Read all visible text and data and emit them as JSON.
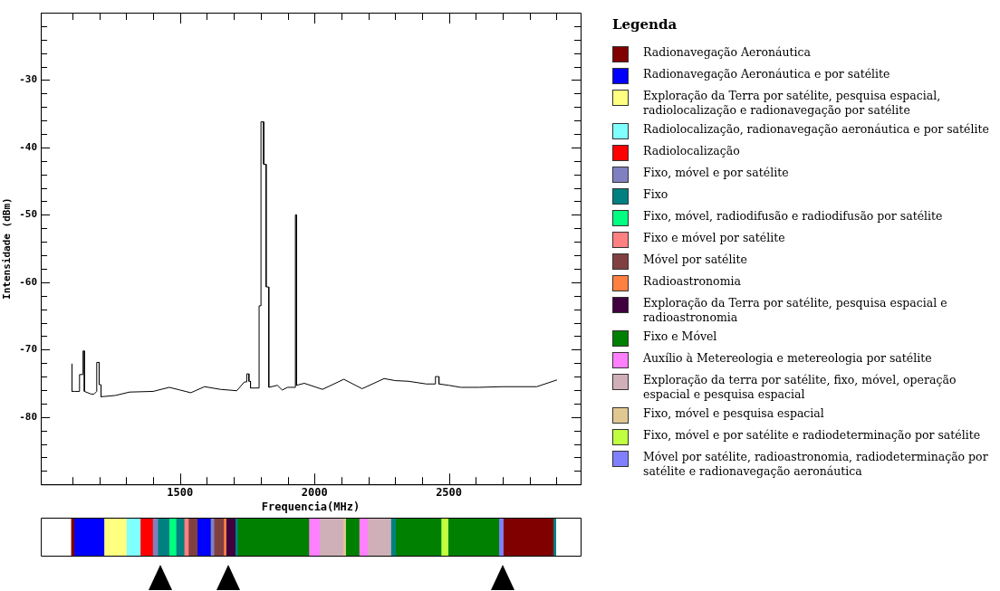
{
  "chart_data": [
    {
      "type": "line",
      "xlabel": "Frequencia(MHz)",
      "ylabel": "Intensidade (dBm)",
      "marker": "none",
      "line_style": "solid",
      "xlim": [
        982,
        2990
      ],
      "ylim": [
        -90,
        -20
      ],
      "xticks": [
        {
          "value": 1100,
          "label": null
        },
        {
          "value": 1200,
          "label": null
        },
        {
          "value": 1300,
          "label": null
        },
        {
          "value": 1400,
          "label": null
        },
        1500,
        {
          "value": 1600,
          "label": null
        },
        {
          "value": 1700,
          "label": null
        },
        {
          "value": 1800,
          "label": null
        },
        {
          "value": 1900,
          "label": null
        },
        2000,
        {
          "value": 2100,
          "label": null
        },
        {
          "value": 2200,
          "label": null
        },
        {
          "value": 2300,
          "label": null
        },
        {
          "value": 2400,
          "label": null
        },
        2500,
        {
          "value": 2600,
          "label": null
        },
        {
          "value": 2700,
          "label": null
        },
        {
          "value": 2800,
          "label": null
        },
        {
          "value": 2900,
          "label": null
        }
      ],
      "yticks": [
        {
          "value": -88,
          "label": null
        },
        {
          "value": -86,
          "label": null
        },
        {
          "value": -84,
          "label": null
        },
        {
          "value": -82,
          "label": null
        },
        -80,
        {
          "value": -78,
          "label": null
        },
        {
          "value": -76,
          "label": null
        },
        {
          "value": -74,
          "label": null
        },
        {
          "value": -72,
          "label": null
        },
        -70,
        {
          "value": -68,
          "label": null
        },
        {
          "value": -66,
          "label": null
        },
        {
          "value": -64,
          "label": null
        },
        {
          "value": -62,
          "label": null
        },
        -60,
        {
          "value": -58,
          "label": null
        },
        {
          "value": -56,
          "label": null
        },
        {
          "value": -54,
          "label": null
        },
        {
          "value": -52,
          "label": null
        },
        -50,
        {
          "value": -48,
          "label": null
        },
        {
          "value": -46,
          "label": null
        },
        {
          "value": -44,
          "label": null
        },
        {
          "value": -42,
          "label": null
        },
        -40,
        {
          "value": -38,
          "label": null
        },
        {
          "value": -36,
          "label": null
        },
        {
          "value": -34,
          "label": null
        },
        {
          "value": -32,
          "label": null
        },
        -30,
        {
          "value": -28,
          "label": null
        },
        {
          "value": -26,
          "label": null
        },
        {
          "value": -24,
          "label": null
        },
        {
          "value": -22,
          "label": null
        }
      ],
      "x": [
        1098,
        1098,
        1109,
        1126,
        1126,
        1139,
        1139,
        1144,
        1144,
        1169,
        1180,
        1190,
        1190,
        1199,
        1199,
        1206,
        1206,
        1260,
        1312,
        1400,
        1460,
        1500,
        1540,
        1591,
        1650,
        1711,
        1739,
        1748,
        1748,
        1756,
        1756,
        1762,
        1762,
        1794,
        1794,
        1801,
        1801,
        1811,
        1811,
        1820,
        1820,
        1830,
        1830,
        1862,
        1880,
        1900,
        1929,
        1929,
        1933,
        1933,
        1962,
        2030,
        2109,
        2177,
        2259,
        2300,
        2350,
        2416,
        2450,
        2450,
        2463,
        2463,
        2500,
        2543,
        2611,
        2700,
        2827,
        2902
      ],
      "series": [
        {
          "color": "#000000",
          "values": [
            -72.1,
            -76.2,
            -76.2,
            -76.2,
            -73.7,
            -73.7,
            -70.2,
            -70.2,
            -76.2,
            -76.6,
            -76.6,
            -76.2,
            -71.9,
            -71.9,
            -75.2,
            -75.2,
            -77.0,
            -76.8,
            -76.3,
            -76.2,
            -75.6,
            -76.0,
            -76.4,
            -75.5,
            -75.9,
            -76.1,
            -74.8,
            -74.8,
            -73.6,
            -73.6,
            -74.7,
            -74.7,
            -75.7,
            -75.7,
            -63.5,
            -63.5,
            -36.2,
            -36.2,
            -42.5,
            -42.5,
            -60.7,
            -60.7,
            -75.6,
            -75.3,
            -76.0,
            -75.6,
            -75.6,
            -50.0,
            -50.0,
            -75.3,
            -75.0,
            -75.9,
            -74.4,
            -75.8,
            -74.3,
            -74.6,
            -74.7,
            -75.1,
            -75.1,
            -74.0,
            -74.0,
            -75.1,
            -75.3,
            -75.6,
            -75.6,
            -75.5,
            -75.5,
            -74.5
          ]
        }
      ]
    },
    {
      "type": "bar",
      "orientation": "horizontal",
      "categories": [
        null
      ],
      "xlim": [
        982,
        2990
      ],
      "tick_labels": false,
      "legend": "right",
      "legend_title": "Legenda",
      "series": [
        {
          "name": "Radionavegação Aeronáutica",
          "color": "#800000",
          "base": [
            1096
          ],
          "values": [
            10
          ]
        },
        {
          "name": "Radionavegação Aeronáutica e por satélite",
          "color": "#0000ff",
          "base": [
            1106
          ],
          "values": [
            111
          ]
        },
        {
          "name": "Exploração da Terra por satélite, pesquisa espacial, radiolocalização e radionavegação por satélite",
          "color": "#ffff80",
          "base": [
            1217
          ],
          "values": [
            83
          ]
        },
        {
          "name": "Radiolocalização, radionavegação aeronáutica e por satélite",
          "color": "#80ffff",
          "base": [
            1300
          ],
          "values": [
            52
          ]
        },
        {
          "name": "Radiolocalização",
          "color": "#ff0000",
          "base": [
            1352
          ],
          "values": [
            46
          ]
        },
        {
          "name": "Fixo, móvel e por satélite",
          "color": "#8080c0",
          "base": [
            1398
          ],
          "values": [
            19
          ]
        },
        {
          "name": "Fixo",
          "color": "#008080",
          "base": [
            1417
          ],
          "values": [
            42
          ]
        },
        {
          "name": "Fixo, móvel, radiodifusão e radiodifusão por satélite",
          "color": "#00ff80",
          "base": [
            1459
          ],
          "values": [
            26
          ]
        },
        {
          "color": "#008080",
          "base": [
            1485
          ],
          "values": [
            30
          ]
        },
        {
          "name": "Fixo e móvel por satélite",
          "color": "#ff8080",
          "base": [
            1515
          ],
          "values": [
            16
          ]
        },
        {
          "name": "Móvel por satélite",
          "color": "#804040",
          "base": [
            1531
          ],
          "values": [
            33
          ]
        },
        {
          "color": "#0000ff",
          "base": [
            1564
          ],
          "values": [
            49
          ]
        },
        {
          "color": "#8080c0",
          "base": [
            1613
          ],
          "values": [
            13
          ]
        },
        {
          "color": "#804040",
          "base": [
            1626
          ],
          "values": [
            36
          ]
        },
        {
          "name": "Radioastronomia",
          "color": "#ff8040",
          "base": [
            1662
          ],
          "values": [
            9
          ]
        },
        {
          "name": "Exploração da Terra por satélite, pesquisa espacial e radioastronomia",
          "color": "#400040",
          "base": [
            1671
          ],
          "values": [
            34
          ]
        },
        {
          "color": "#008080",
          "base": [
            1705
          ],
          "values": [
            9
          ]
        },
        {
          "name": "Fixo e Móvel",
          "color": "#008000",
          "base": [
            1714
          ],
          "values": [
            265
          ]
        },
        {
          "name": "Auxílio à Metereologia e metereologia por satélite",
          "color": "#ff80ff",
          "base": [
            1979
          ],
          "values": [
            40
          ]
        },
        {
          "name": "Exploração da terra por satélite, fixo, móvel, operação espacial e pesquisa espacial",
          "color": "#d0b0b8",
          "base": [
            2019
          ],
          "values": [
            88
          ]
        },
        {
          "name": "Fixo, móvel e pesquisa espacial",
          "color": "#e0c890",
          "base": [
            2107
          ],
          "values": [
            9
          ]
        },
        {
          "color": "#008000",
          "base": [
            2116
          ],
          "values": [
            50
          ]
        },
        {
          "color": "#ff80ff",
          "base": [
            2166
          ],
          "values": [
            32
          ]
        },
        {
          "color": "#d0b0b8",
          "base": [
            2198
          ],
          "values": [
            86
          ]
        },
        {
          "color": "#008080",
          "base": [
            2284
          ],
          "values": [
            17
          ]
        },
        {
          "color": "#008000",
          "base": [
            2301
          ],
          "values": [
            170
          ]
        },
        {
          "name": "Fixo, móvel e por satélite e radiodeterminação por satélite",
          "color": "#c0ff40",
          "base": [
            2471
          ],
          "values": [
            26
          ]
        },
        {
          "color": "#008000",
          "base": [
            2497
          ],
          "values": [
            189
          ]
        },
        {
          "name": "Móvel por satélite, radioastronomia, radiodeterminação por satélite e radionavegação aeronáutica",
          "color": "#8080ff",
          "base": [
            2686
          ],
          "values": [
            16
          ]
        },
        {
          "color": "#800000",
          "base": [
            2702
          ],
          "values": [
            186
          ]
        },
        {
          "color": "#008080",
          "base": [
            2888
          ],
          "values": [
            10
          ]
        }
      ]
    }
  ]
}
